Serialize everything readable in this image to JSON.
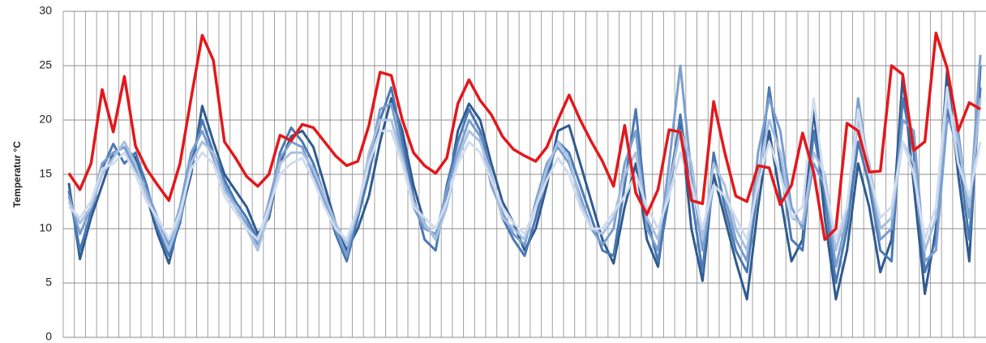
{
  "chart_data": {
    "type": "line",
    "y_label": "Temperatur °C",
    "categories": [
      null,
      null,
      null,
      null,
      null,
      null,
      null,
      null,
      null,
      null,
      null,
      null,
      null,
      null,
      null,
      null,
      null,
      null,
      null,
      null,
      null,
      null,
      null,
      null,
      null,
      null,
      null,
      null,
      null,
      null,
      null,
      null,
      null,
      null,
      null,
      null,
      null,
      null,
      null,
      null,
      null,
      null,
      null,
      null,
      null,
      null,
      null,
      null,
      null,
      null,
      null,
      null,
      null,
      null,
      null,
      null,
      null,
      null,
      null,
      null,
      null,
      null,
      null,
      null,
      null,
      null,
      null,
      null,
      null,
      null,
      null,
      null,
      null,
      null,
      null,
      null,
      null,
      null,
      null,
      null,
      null,
      null,
      null
    ],
    "ylim": [
      0,
      30
    ],
    "yticks": [
      0,
      5,
      10,
      15,
      20,
      25,
      30
    ],
    "grid": true,
    "series": [
      {
        "color": "#2f5b8f",
        "values": [
          14.2,
          7.2,
          11,
          14,
          17,
          17.5,
          16.5,
          13,
          9.5,
          6.8,
          11,
          15,
          21.3,
          18,
          15,
          13.5,
          12,
          9.5,
          11,
          16,
          18.5,
          19,
          17.5,
          14,
          10.5,
          8,
          10,
          13,
          18,
          22,
          19,
          14,
          10.5,
          9,
          13,
          19,
          21.5,
          20,
          16,
          12.5,
          10.5,
          8,
          10,
          14,
          19,
          19.5,
          16,
          12.5,
          9,
          6.8,
          12,
          16,
          9,
          6.5,
          14,
          20,
          10,
          5.2,
          15,
          11,
          7,
          3.5,
          12,
          19,
          13,
          7,
          9,
          21,
          11,
          3.5,
          8,
          16,
          12,
          6,
          9,
          24,
          14,
          4,
          10,
          24.5,
          15,
          7,
          25
        ]
      },
      {
        "color": "#4a79b3",
        "values": [
          13.5,
          8,
          11.5,
          15.5,
          17.8,
          16,
          17,
          14,
          10,
          7.5,
          10.5,
          16,
          20,
          17,
          14.5,
          12.5,
          11,
          9,
          12,
          17,
          19.3,
          18,
          16,
          13,
          9.5,
          7,
          11,
          15,
          20,
          23,
          18,
          13,
          9,
          8,
          14,
          18,
          21,
          19,
          15,
          11,
          9,
          7.5,
          11,
          15,
          18,
          17,
          14,
          11,
          8,
          7.5,
          14,
          21,
          11,
          7,
          13,
          20.5,
          13,
          6,
          17,
          12,
          8,
          6,
          14,
          23,
          16,
          9,
          8,
          19,
          13,
          5,
          10,
          18,
          14,
          8,
          7,
          22,
          17,
          6,
          9,
          21,
          17,
          9,
          23
        ]
      },
      {
        "color": "#7a9fcf",
        "values": [
          13,
          9.5,
          12,
          16,
          17,
          17.5,
          15.5,
          13.5,
          11,
          8.5,
          12,
          17,
          19,
          16.5,
          14,
          12,
          10.5,
          8.5,
          12.5,
          16.5,
          18,
          17.5,
          15,
          12.5,
          10,
          7.5,
          12,
          16,
          21,
          21.5,
          17,
          12,
          10,
          9.5,
          13.5,
          17,
          20,
          18.5,
          14,
          11.5,
          9.5,
          8.5,
          12.5,
          16,
          17.5,
          16,
          13,
          10,
          8.5,
          10,
          16,
          19,
          10,
          8,
          16,
          25,
          15,
          8,
          14,
          13,
          9,
          7,
          17,
          22,
          19,
          12,
          10,
          16,
          14,
          6.5,
          11,
          22,
          15,
          9,
          10,
          20,
          19,
          7,
          8,
          20,
          19,
          11,
          26
        ]
      },
      {
        "color": "#a8c0e1",
        "values": [
          12.5,
          10.5,
          12,
          15,
          16.5,
          18,
          16,
          13,
          10.5,
          8,
          11,
          16,
          18,
          17,
          13.5,
          12,
          10,
          8,
          11.5,
          16,
          17,
          17,
          15.5,
          13,
          10.5,
          8.5,
          11.5,
          17,
          20,
          20,
          16.5,
          12.5,
          10.5,
          9,
          12,
          16.5,
          19,
          18,
          15,
          11,
          10,
          9,
          12,
          15.5,
          18,
          16.5,
          12.5,
          10,
          9.5,
          11,
          15,
          17,
          11,
          9,
          14,
          19,
          16,
          9,
          16,
          14,
          10,
          8,
          15,
          20,
          17,
          11,
          10.5,
          17,
          15,
          8,
          12,
          20,
          16,
          10,
          11,
          18,
          16,
          8,
          11,
          22,
          18,
          12,
          22
        ]
      },
      {
        "color": "#d0dcef",
        "values": [
          12,
          11,
          12.5,
          15.5,
          16,
          17,
          15,
          12.5,
          11,
          9,
          11.5,
          15.5,
          17,
          16,
          13,
          11.5,
          10,
          9,
          12,
          15,
          16,
          16.5,
          14.5,
          12,
          10,
          9,
          12,
          16,
          19,
          19,
          16,
          12,
          11,
          10,
          12.5,
          16,
          18,
          17,
          14.5,
          12,
          10.5,
          9.5,
          12,
          14.5,
          16.5,
          15,
          12,
          10,
          10,
          11.5,
          13,
          15,
          12,
          10,
          13,
          17,
          14,
          10,
          14,
          13,
          11,
          9,
          14,
          18,
          15,
          11,
          12,
          22,
          14,
          9,
          12,
          21,
          15,
          11,
          12,
          18,
          15,
          9,
          12,
          23,
          16,
          13,
          18
        ]
      },
      {
        "color": "#e3181c",
        "values": [
          15.1,
          13.6,
          16,
          22.8,
          18.9,
          24,
          17.6,
          15.5,
          14,
          12.6,
          16,
          22,
          27.8,
          25.5,
          18,
          16.5,
          14.8,
          13.9,
          15,
          18.6,
          18.1,
          19.6,
          19.3,
          18,
          16.7,
          15.8,
          16.2,
          19.5,
          24.4,
          24.1,
          20,
          17,
          15.8,
          15.1,
          16.5,
          21.5,
          23.7,
          21.8,
          20.5,
          18.5,
          17.3,
          16.7,
          16.2,
          17.5,
          20,
          22.3,
          20,
          18,
          16.2,
          13.9,
          19.5,
          13.3,
          11.3,
          13.6,
          19.1,
          18.9,
          12.6,
          12.3,
          21.7,
          17,
          13,
          12.5,
          15.8,
          15.6,
          12.2,
          14,
          18.8,
          15.2,
          9,
          10,
          19.7,
          19,
          15.2,
          15.3,
          25,
          24.2,
          17.2,
          18,
          28,
          24.8,
          19,
          21.6,
          21
        ]
      }
    ]
  }
}
